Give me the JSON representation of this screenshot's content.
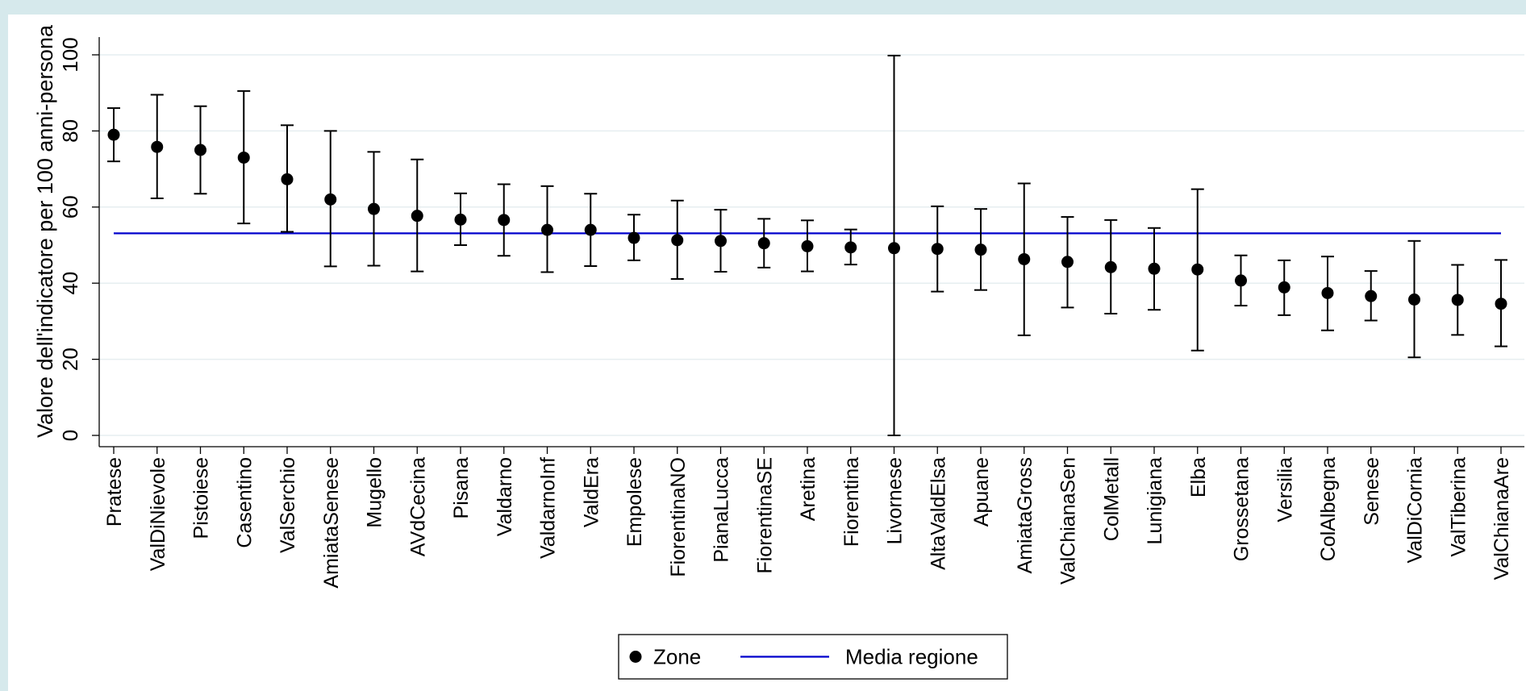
{
  "chart_data": {
    "type": "scatter",
    "ylabel": "Valore dell'indicatore per 100 anni-persona",
    "ylim": [
      0,
      100
    ],
    "yticks": [
      0,
      20,
      40,
      60,
      80,
      100
    ],
    "grid": true,
    "legend_position": "bottom",
    "categories": [
      "Pratese",
      "ValDiNievole",
      "Pistoiese",
      "Casentino",
      "ValSerchio",
      "AmiataSenese",
      "Mugello",
      "AVdCecina",
      "Pisana",
      "Valdarno",
      "ValdarnoInf",
      "ValdEra",
      "Empolese",
      "FiorentinaNO",
      "PianaLucca",
      "FiorentinaSE",
      "Aretina",
      "Fiorentina",
      "Livornese",
      "AltaValdElsa",
      "Apuane",
      "AmiataGross",
      "ValChianaSen",
      "ColMetall",
      "Lunigiana",
      "Elba",
      "Grossetana",
      "Versilia",
      "ColAlbegna",
      "Senese",
      "ValDiCornia",
      "ValTiberina",
      "ValChianaAre"
    ],
    "series": [
      {
        "name": "Zone",
        "values": [
          79,
          75.8,
          75,
          73,
          67.3,
          62,
          59.5,
          57.7,
          56.7,
          56.6,
          54,
          54,
          51.9,
          51.3,
          51.1,
          50.5,
          49.7,
          49.4,
          49.2,
          49,
          48.8,
          46.3,
          45.6,
          44.2,
          43.8,
          43.6,
          40.7,
          38.9,
          37.4,
          36.6,
          35.7,
          35.6,
          34.6
        ],
        "lower": [
          72,
          62.3,
          63.5,
          55.7,
          53.5,
          44.4,
          44.6,
          43.1,
          50,
          47.2,
          42.9,
          44.5,
          46,
          41.1,
          43,
          44.1,
          43.1,
          44.9,
          0,
          37.8,
          38.2,
          26.3,
          33.6,
          32,
          33,
          22.3,
          34.1,
          31.6,
          27.6,
          30.2,
          20.5,
          26.4,
          23.4
        ],
        "upper": [
          86,
          89.5,
          86.5,
          90.5,
          81.5,
          80,
          74.5,
          72.5,
          63.6,
          66,
          65.5,
          63.5,
          58,
          61.7,
          59.3,
          56.9,
          56.5,
          54.1,
          99.8,
          60.2,
          59.5,
          66.2,
          57.4,
          56.6,
          54.5,
          64.7,
          47.3,
          46,
          47,
          43.2,
          51.1,
          44.8,
          46.1
        ]
      },
      {
        "name": "Media regione",
        "y": 53.1,
        "color": "#0000cc"
      }
    ]
  }
}
